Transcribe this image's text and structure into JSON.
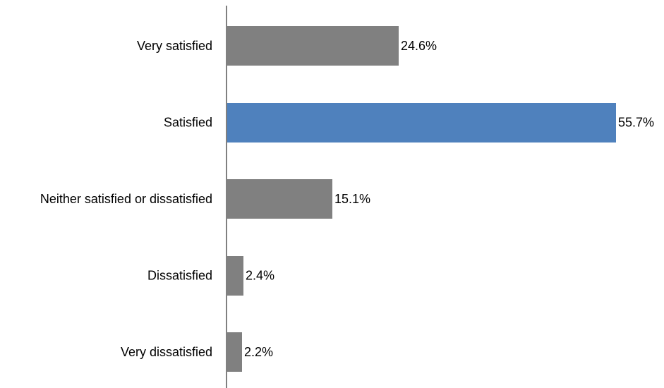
{
  "chart_data": {
    "type": "bar",
    "orientation": "horizontal",
    "categories": [
      "Very satisfied",
      "Satisfied",
      "Neither satisfied or dissatisfied",
      "Dissatisfied",
      "Very dissatisfied"
    ],
    "values": [
      24.6,
      55.7,
      15.1,
      2.4,
      2.2
    ],
    "value_labels": [
      "24.6%",
      "55.7%",
      "15.1%",
      "2.4%",
      "2.2%"
    ],
    "unit": "%",
    "xlim": [
      0,
      55.7
    ],
    "highlighted_category": "Satisfied",
    "grid": false,
    "legend": "none",
    "colors": {
      "bar_default": "#808080",
      "bar_highlight": "#4f81bd",
      "axis": "#808080"
    }
  }
}
